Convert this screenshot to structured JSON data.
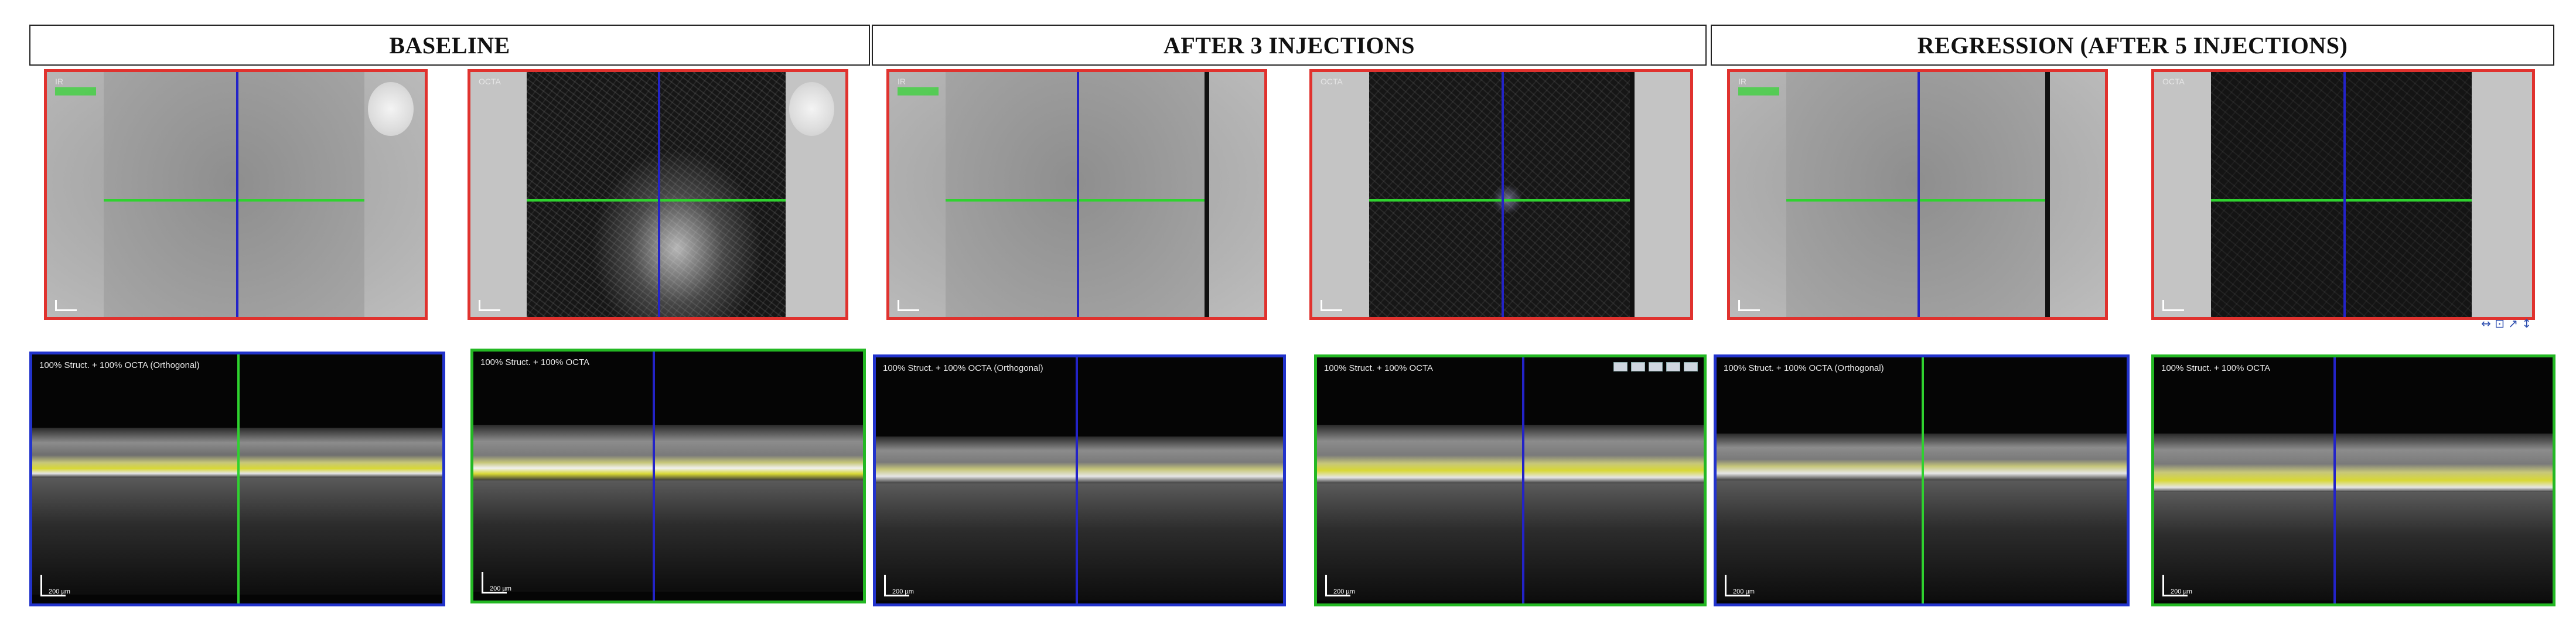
{
  "headers": {
    "baseline": "BASELINE",
    "after3": "AFTER 3 INJECTIONS",
    "regression": "REGRESSION (AFTER 5 INJECTIONS)"
  },
  "bscan_labels": {
    "b1": "100% Struct. + 100% OCTA (Orthogonal)",
    "b2": "100% Struct. + 100% OCTA",
    "b3": "100% Struct. + 100% OCTA (Orthogonal)",
    "b4": "100% Struct. + 100% OCTA",
    "b5": "100% Struct. + 100% OCTA (Orthogonal)",
    "b6": "100% Struct. + 100% OCTA"
  },
  "scale_labels": {
    "fundus": "200 µm",
    "bscan": "200 µm"
  },
  "colors": {
    "fundus_border": "#e0322e",
    "bscan_border_blue": "#2233cc",
    "bscan_border_green": "#23b823",
    "horizontal_line": "#2fd22f",
    "vertical_line": "#2323c8"
  }
}
